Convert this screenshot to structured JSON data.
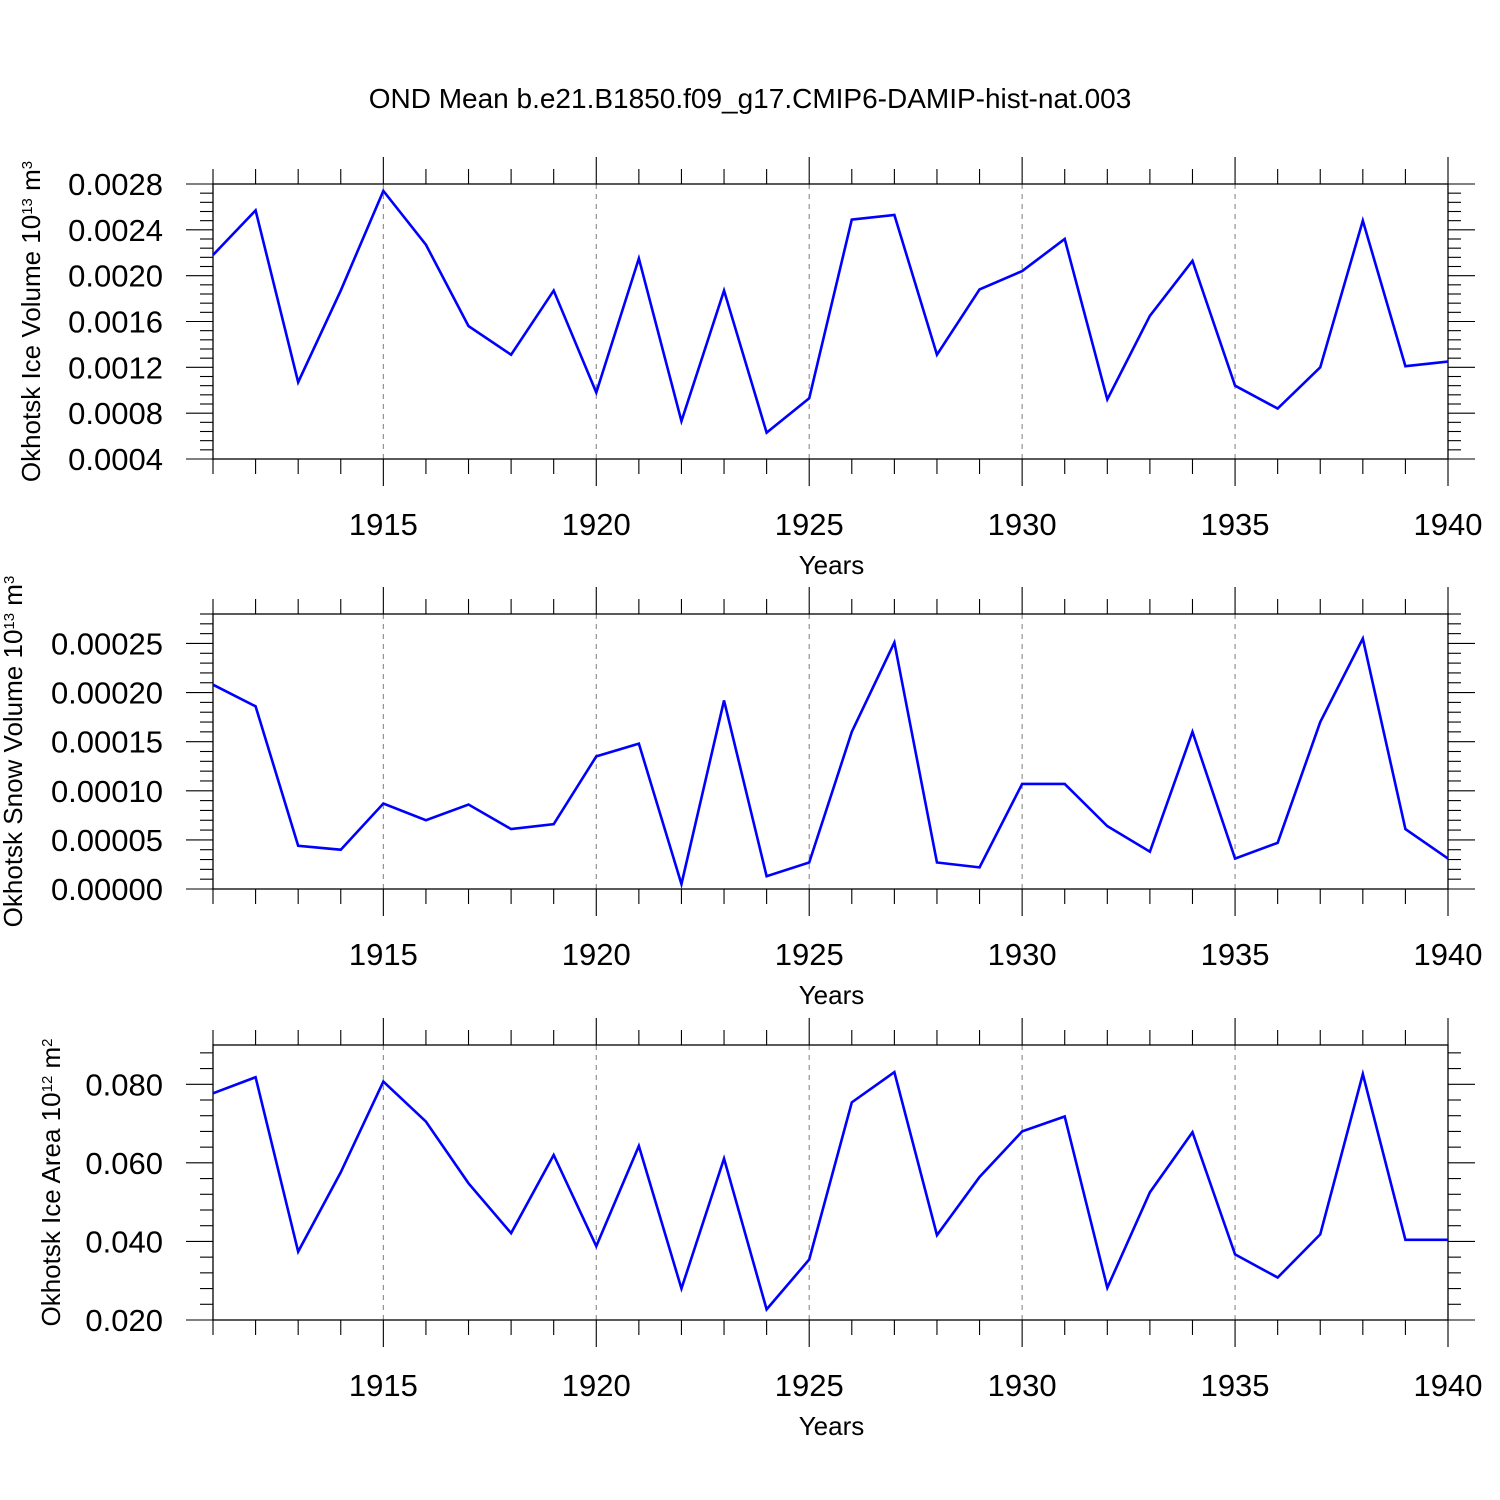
{
  "chart_data": {
    "type": "line",
    "title": "OND Mean b.e21.B1850.f09_g17.CMIP6-DAMIP-hist-nat.003",
    "series_color": "#0000ff",
    "xlim": [
      1911,
      1940
    ],
    "x_ticks": [
      1915,
      1920,
      1925,
      1930,
      1935,
      1940
    ],
    "x_tick_labels": [
      "1915",
      "1920",
      "1925",
      "1930",
      "1935",
      "1940"
    ],
    "x": [
      1911,
      1912,
      1913,
      1914,
      1915,
      1916,
      1917,
      1918,
      1919,
      1920,
      1921,
      1922,
      1923,
      1924,
      1925,
      1926,
      1927,
      1928,
      1929,
      1930,
      1931,
      1932,
      1933,
      1934,
      1935,
      1936,
      1937,
      1938,
      1939,
      1940
    ],
    "panels": [
      {
        "name": "ice-volume",
        "ylabel_main": "Okhotsk Ice Volume 10",
        "ylabel_exp": "13",
        "ylabel_unit": " m",
        "ylabel_unit_exp": "3",
        "xlabel": "Years",
        "ylim": [
          0.0004,
          0.0028
        ],
        "y_ticks": [
          0.0004,
          0.0008,
          0.0012,
          0.0016,
          0.002,
          0.0024,
          0.0028
        ],
        "y_tick_labels": [
          "0.0004",
          "0.0008",
          "0.0012",
          "0.0016",
          "0.0020",
          "0.0024",
          "0.0028"
        ],
        "values": [
          0.00218,
          0.00257,
          0.00107,
          0.00187,
          0.00274,
          0.00227,
          0.00156,
          0.00131,
          0.00187,
          0.00098,
          0.00215,
          0.00073,
          0.00187,
          0.00063,
          0.00093,
          0.00249,
          0.00253,
          0.00131,
          0.00188,
          0.00204,
          0.00232,
          0.00092,
          0.00165,
          0.00213,
          0.00104,
          0.00084,
          0.0012,
          0.00248,
          0.00121,
          0.00125
        ]
      },
      {
        "name": "snow-volume",
        "ylabel_main": "Okhotsk Snow Volume 10",
        "ylabel_exp": "13",
        "ylabel_unit": " m",
        "ylabel_unit_exp": "3",
        "xlabel": "Years",
        "ylim": [
          0.0,
          0.00028
        ],
        "y_ticks": [
          0.0,
          5e-05,
          0.0001,
          0.00015,
          0.0002,
          0.00025
        ],
        "y_tick_labels": [
          "0.00000",
          "0.00005",
          "0.00010",
          "0.00015",
          "0.00020",
          "0.00025"
        ],
        "values": [
          0.000208,
          0.000186,
          4.4e-05,
          4e-05,
          8.7e-05,
          7e-05,
          8.6e-05,
          6.1e-05,
          6.6e-05,
          0.000135,
          0.000148,
          5e-06,
          0.000192,
          1.3e-05,
          2.7e-05,
          0.00016,
          0.000251,
          2.7e-05,
          2.2e-05,
          0.000107,
          0.000107,
          6.4e-05,
          3.8e-05,
          0.00016,
          3.1e-05,
          4.7e-05,
          0.00017,
          0.000255,
          6.1e-05,
          3.1e-05
        ]
      },
      {
        "name": "ice-area",
        "ylabel_main": "Okhotsk Ice Area 10",
        "ylabel_exp": "12",
        "ylabel_unit": " m",
        "ylabel_unit_exp": "2",
        "xlabel": "Years",
        "ylim": [
          0.02,
          0.09
        ],
        "y_ticks": [
          0.02,
          0.04,
          0.06,
          0.08
        ],
        "y_tick_labels": [
          "0.020",
          "0.040",
          "0.060",
          "0.080"
        ],
        "values": [
          0.0777,
          0.0818,
          0.0374,
          0.0576,
          0.0807,
          0.0705,
          0.0548,
          0.0421,
          0.062,
          0.0388,
          0.0643,
          0.028,
          0.0611,
          0.0227,
          0.0354,
          0.0754,
          0.0831,
          0.0416,
          0.0564,
          0.068,
          0.0718,
          0.0282,
          0.0525,
          0.0678,
          0.0367,
          0.0308,
          0.0418,
          0.0826,
          0.0404,
          0.0404
        ]
      }
    ]
  }
}
